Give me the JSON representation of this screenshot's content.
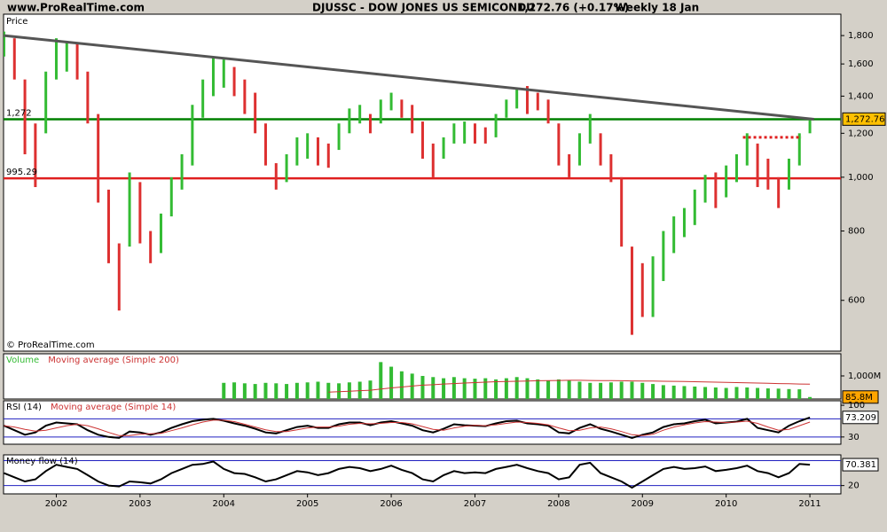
{
  "header": {
    "site": "www.ProRealTime.com",
    "name": "DJUSSC - DOW JONES US SEMICONDU",
    "quote": "1,272.76 (+0.17%)",
    "period": "Weekly  18 Jan",
    "copyright": "© ProRealTime.com"
  },
  "chart_data": [
    {
      "type": "ohlc",
      "title": "Price",
      "log_scale": true,
      "up_color": "#33bb33",
      "down_color": "#dd3030",
      "xlim": [
        2001.37,
        2011.37
      ],
      "ylim": [
        486,
        1967
      ],
      "yticks": [
        600,
        800,
        {
          "value": 1000,
          "label": "1,000"
        },
        {
          "value": 1200,
          "label": "1,200"
        },
        {
          "value": 1400,
          "label": "1,400"
        },
        {
          "value": 1600,
          "label": "1,600"
        },
        {
          "value": 1800,
          "label": "1,800"
        }
      ],
      "x": [
        2001.375,
        2001.5,
        2001.625,
        2001.75,
        2001.875,
        2002,
        2002.125,
        2002.25,
        2002.375,
        2002.5,
        2002.625,
        2002.75,
        2002.875,
        2003,
        2003.125,
        2003.25,
        2003.375,
        2003.5,
        2003.625,
        2003.75,
        2003.875,
        2004,
        2004.125,
        2004.25,
        2004.375,
        2004.5,
        2004.625,
        2004.75,
        2004.875,
        2005,
        2005.125,
        2005.25,
        2005.375,
        2005.5,
        2005.625,
        2005.75,
        2005.875,
        2006,
        2006.125,
        2006.25,
        2006.375,
        2006.5,
        2006.625,
        2006.75,
        2006.875,
        2007,
        2007.125,
        2007.25,
        2007.375,
        2007.5,
        2007.625,
        2007.75,
        2007.875,
        2008,
        2008.125,
        2008.25,
        2008.375,
        2008.5,
        2008.625,
        2008.75,
        2008.875,
        2009,
        2009.125,
        2009.25,
        2009.375,
        2009.5,
        2009.625,
        2009.75,
        2009.875,
        2010,
        2010.125,
        2010.25,
        2010.375,
        2010.5,
        2010.625,
        2010.75,
        2010.875,
        2011
      ],
      "high": [
        1830,
        1780,
        1500,
        1250,
        1550,
        1780,
        1760,
        1750,
        1550,
        1300,
        950,
        760,
        1020,
        980,
        800,
        860,
        1000,
        1100,
        1350,
        1500,
        1640,
        1630,
        1580,
        1500,
        1420,
        1250,
        1060,
        1100,
        1180,
        1200,
        1180,
        1150,
        1250,
        1330,
        1350,
        1300,
        1380,
        1420,
        1380,
        1350,
        1260,
        1150,
        1180,
        1250,
        1260,
        1250,
        1230,
        1300,
        1380,
        1450,
        1460,
        1420,
        1380,
        1250,
        1100,
        1200,
        1300,
        1200,
        1100,
        1000,
        750,
        700,
        720,
        800,
        850,
        880,
        950,
        1010,
        1020,
        1050,
        1100,
        1200,
        1150,
        1080,
        1000,
        1080,
        1200,
        1280
      ],
      "low": [
        1650,
        1500,
        1100,
        960,
        1200,
        1500,
        1550,
        1500,
        1250,
        900,
        700,
        575,
        750,
        760,
        700,
        730,
        850,
        950,
        1050,
        1280,
        1400,
        1450,
        1400,
        1300,
        1200,
        1050,
        950,
        980,
        1050,
        1080,
        1050,
        1040,
        1120,
        1200,
        1250,
        1200,
        1250,
        1320,
        1280,
        1200,
        1080,
        1000,
        1080,
        1150,
        1150,
        1150,
        1150,
        1180,
        1280,
        1330,
        1300,
        1320,
        1250,
        1050,
        1000,
        1050,
        1150,
        1050,
        980,
        750,
        520,
        560,
        560,
        650,
        730,
        780,
        820,
        900,
        880,
        920,
        980,
        1050,
        960,
        950,
        880,
        950,
        1050,
        1200
      ],
      "last": 1272.76,
      "last_label": "1,272.76",
      "badge_color": "#ffc000",
      "hlines": [
        {
          "value": 1272,
          "label": "1,272",
          "color": "#008000"
        },
        {
          "value": 995.29,
          "label": "995.29",
          "color": "#e02020"
        }
      ],
      "lines": [
        {
          "x": [
            2001.375,
            2011.05
          ],
          "y": [
            1800,
            1272
          ],
          "color": "#555555",
          "style": "solid"
        },
        {
          "x": [
            2010.2,
            2010.9
          ],
          "y": [
            1180,
            1180
          ],
          "color": "#e02020",
          "style": "dotted"
        }
      ]
    },
    {
      "type": "bar",
      "xlim": [
        2001.37,
        2011.37
      ],
      "ylim": [
        0,
        1960
      ],
      "yticks": [
        {
          "value": 1000,
          "label": "1,000M"
        }
      ],
      "x": [
        2001.375,
        2001.5,
        2001.625,
        2001.75,
        2001.875,
        2002,
        2002.125,
        2002.25,
        2002.375,
        2002.5,
        2002.625,
        2002.75,
        2002.875,
        2003,
        2003.125,
        2003.25,
        2003.375,
        2003.5,
        2003.625,
        2003.75,
        2003.875,
        2004,
        2004.125,
        2004.25,
        2004.375,
        2004.5,
        2004.625,
        2004.75,
        2004.875,
        2005,
        2005.125,
        2005.25,
        2005.375,
        2005.5,
        2005.625,
        2005.75,
        2005.875,
        2006,
        2006.125,
        2006.25,
        2006.375,
        2006.5,
        2006.625,
        2006.75,
        2006.875,
        2007,
        2007.125,
        2007.25,
        2007.375,
        2007.5,
        2007.625,
        2007.75,
        2007.875,
        2008,
        2008.125,
        2008.25,
        2008.375,
        2008.5,
        2008.625,
        2008.75,
        2008.875,
        2009,
        2009.125,
        2009.25,
        2009.375,
        2009.5,
        2009.625,
        2009.75,
        2009.875,
        2010,
        2010.125,
        2010.25,
        2010.375,
        2010.5,
        2010.625,
        2010.75,
        2010.875,
        2011
      ],
      "series": [
        {
          "name": "Volume",
          "color": "#33bb33",
          "last_label": "85.8M",
          "badge_color": "#ffa500",
          "values": [
            null,
            null,
            null,
            null,
            null,
            null,
            null,
            null,
            null,
            null,
            null,
            null,
            null,
            null,
            null,
            null,
            null,
            null,
            null,
            null,
            null,
            700,
            720,
            680,
            650,
            700,
            680,
            650,
            700,
            720,
            750,
            700,
            680,
            720,
            750,
            800,
            1600,
            1400,
            1200,
            1100,
            1000,
            950,
            900,
            950,
            900,
            880,
            900,
            850,
            900,
            950,
            900,
            850,
            800,
            850,
            800,
            750,
            700,
            700,
            720,
            750,
            750,
            700,
            650,
            600,
            580,
            560,
            540,
            520,
            500,
            480,
            520,
            500,
            480,
            460,
            450,
            430,
            420,
            85.8
          ]
        },
        {
          "name": "Moving average (Simple 200)",
          "color": "#cc3333",
          "type": "line",
          "values": [
            null,
            null,
            null,
            null,
            null,
            null,
            null,
            null,
            null,
            null,
            null,
            null,
            null,
            null,
            null,
            null,
            null,
            null,
            null,
            null,
            null,
            null,
            null,
            null,
            null,
            null,
            null,
            null,
            null,
            null,
            null,
            300,
            320,
            340,
            360,
            380,
            430,
            480,
            520,
            560,
            600,
            620,
            650,
            670,
            690,
            710,
            730,
            750,
            760,
            770,
            780,
            790,
            800,
            805,
            810,
            810,
            805,
            800,
            795,
            790,
            785,
            780,
            775,
            770,
            765,
            760,
            750,
            740,
            730,
            720,
            710,
            700,
            690,
            680,
            670,
            660,
            650,
            640
          ]
        }
      ]
    },
    {
      "type": "line",
      "xlim": [
        2001.37,
        2011.37
      ],
      "ylim": [
        14,
        110
      ],
      "yticks": [
        30,
        100
      ],
      "levels": [
        70,
        30
      ],
      "level_color": "#2020c0",
      "x": [
        2001.375,
        2001.5,
        2001.625,
        2001.75,
        2001.875,
        2002,
        2002.125,
        2002.25,
        2002.375,
        2002.5,
        2002.625,
        2002.75,
        2002.875,
        2003,
        2003.125,
        2003.25,
        2003.375,
        2003.5,
        2003.625,
        2003.75,
        2003.875,
        2004,
        2004.125,
        2004.25,
        2004.375,
        2004.5,
        2004.625,
        2004.75,
        2004.875,
        2005,
        2005.125,
        2005.25,
        2005.375,
        2005.5,
        2005.625,
        2005.75,
        2005.875,
        2006,
        2006.125,
        2006.25,
        2006.375,
        2006.5,
        2006.625,
        2006.75,
        2006.875,
        2007,
        2007.125,
        2007.25,
        2007.375,
        2007.5,
        2007.625,
        2007.75,
        2007.875,
        2008,
        2008.125,
        2008.25,
        2008.375,
        2008.5,
        2008.625,
        2008.75,
        2008.875,
        2009,
        2009.125,
        2009.25,
        2009.375,
        2009.5,
        2009.625,
        2009.75,
        2009.875,
        2010,
        2010.125,
        2010.25,
        2010.375,
        2010.5,
        2010.625,
        2010.75,
        2010.875,
        2011
      ],
      "series": [
        {
          "name": "RSI (14)",
          "color": "#000000",
          "last_label": "73.209",
          "badge_color": "#ffffff",
          "values": [
            55,
            45,
            35,
            40,
            55,
            62,
            60,
            58,
            45,
            35,
            30,
            28,
            42,
            40,
            35,
            40,
            50,
            58,
            65,
            68,
            70,
            66,
            60,
            55,
            48,
            40,
            38,
            45,
            52,
            55,
            50,
            50,
            58,
            62,
            62,
            56,
            62,
            65,
            60,
            55,
            45,
            40,
            48,
            58,
            56,
            55,
            54,
            60,
            65,
            66,
            60,
            58,
            55,
            40,
            38,
            50,
            58,
            48,
            42,
            35,
            28,
            35,
            40,
            52,
            58,
            60,
            65,
            68,
            60,
            62,
            64,
            70,
            50,
            45,
            40,
            55,
            65,
            73.209
          ]
        },
        {
          "name": "Moving average (Simple 14)",
          "color": "#cc3333",
          "values": [
            55,
            52,
            47,
            43,
            45,
            50,
            55,
            58,
            55,
            48,
            40,
            33,
            33,
            36,
            37,
            38,
            44,
            50,
            57,
            63,
            67,
            67,
            64,
            58,
            52,
            46,
            42,
            42,
            46,
            50,
            52,
            52,
            54,
            58,
            60,
            59,
            60,
            62,
            62,
            59,
            53,
            47,
            45,
            50,
            54,
            56,
            55,
            57,
            60,
            63,
            62,
            60,
            57,
            50,
            44,
            45,
            50,
            52,
            48,
            42,
            35,
            33,
            36,
            45,
            52,
            57,
            61,
            64,
            63,
            62,
            63,
            65,
            60,
            52,
            45,
            47,
            55,
            63
          ]
        }
      ]
    },
    {
      "type": "line",
      "xlim": [
        2001.37,
        2011.37
      ],
      "ylim": [
        0,
        94
      ],
      "yticks": [
        20
      ],
      "levels": [
        80,
        20
      ],
      "level_color": "#2020c0",
      "xticks": [
        2002,
        2003,
        2004,
        2005,
        2006,
        2007,
        2008,
        2009,
        2010,
        2011
      ],
      "x": [
        2001.375,
        2001.5,
        2001.625,
        2001.75,
        2001.875,
        2002,
        2002.125,
        2002.25,
        2002.375,
        2002.5,
        2002.625,
        2002.75,
        2002.875,
        2003,
        2003.125,
        2003.25,
        2003.375,
        2003.5,
        2003.625,
        2003.75,
        2003.875,
        2004,
        2004.125,
        2004.25,
        2004.375,
        2004.5,
        2004.625,
        2004.75,
        2004.875,
        2005,
        2005.125,
        2005.25,
        2005.375,
        2005.5,
        2005.625,
        2005.75,
        2005.875,
        2006,
        2006.125,
        2006.25,
        2006.375,
        2006.5,
        2006.625,
        2006.75,
        2006.875,
        2007,
        2007.125,
        2007.25,
        2007.375,
        2007.5,
        2007.625,
        2007.75,
        2007.875,
        2008,
        2008.125,
        2008.25,
        2008.375,
        2008.5,
        2008.625,
        2008.75,
        2008.875,
        2009,
        2009.125,
        2009.25,
        2009.375,
        2009.5,
        2009.625,
        2009.75,
        2009.875,
        2010,
        2010.125,
        2010.25,
        2010.375,
        2010.5,
        2010.625,
        2010.75,
        2010.875,
        2011
      ],
      "series": [
        {
          "name": "Money flow (14)",
          "color": "#000000",
          "last_label": "70.381",
          "badge_color": "#ffffff",
          "values": [
            50,
            40,
            30,
            35,
            55,
            70,
            65,
            60,
            45,
            30,
            20,
            18,
            30,
            28,
            25,
            35,
            50,
            60,
            70,
            72,
            78,
            60,
            50,
            48,
            40,
            30,
            35,
            45,
            55,
            52,
            45,
            50,
            60,
            65,
            62,
            55,
            60,
            68,
            58,
            50,
            35,
            30,
            45,
            55,
            50,
            52,
            50,
            60,
            65,
            70,
            62,
            55,
            50,
            35,
            40,
            70,
            75,
            50,
            40,
            30,
            15,
            30,
            45,
            60,
            65,
            60,
            62,
            66,
            55,
            58,
            62,
            68,
            55,
            50,
            40,
            50,
            72,
            70.381
          ]
        }
      ]
    }
  ]
}
